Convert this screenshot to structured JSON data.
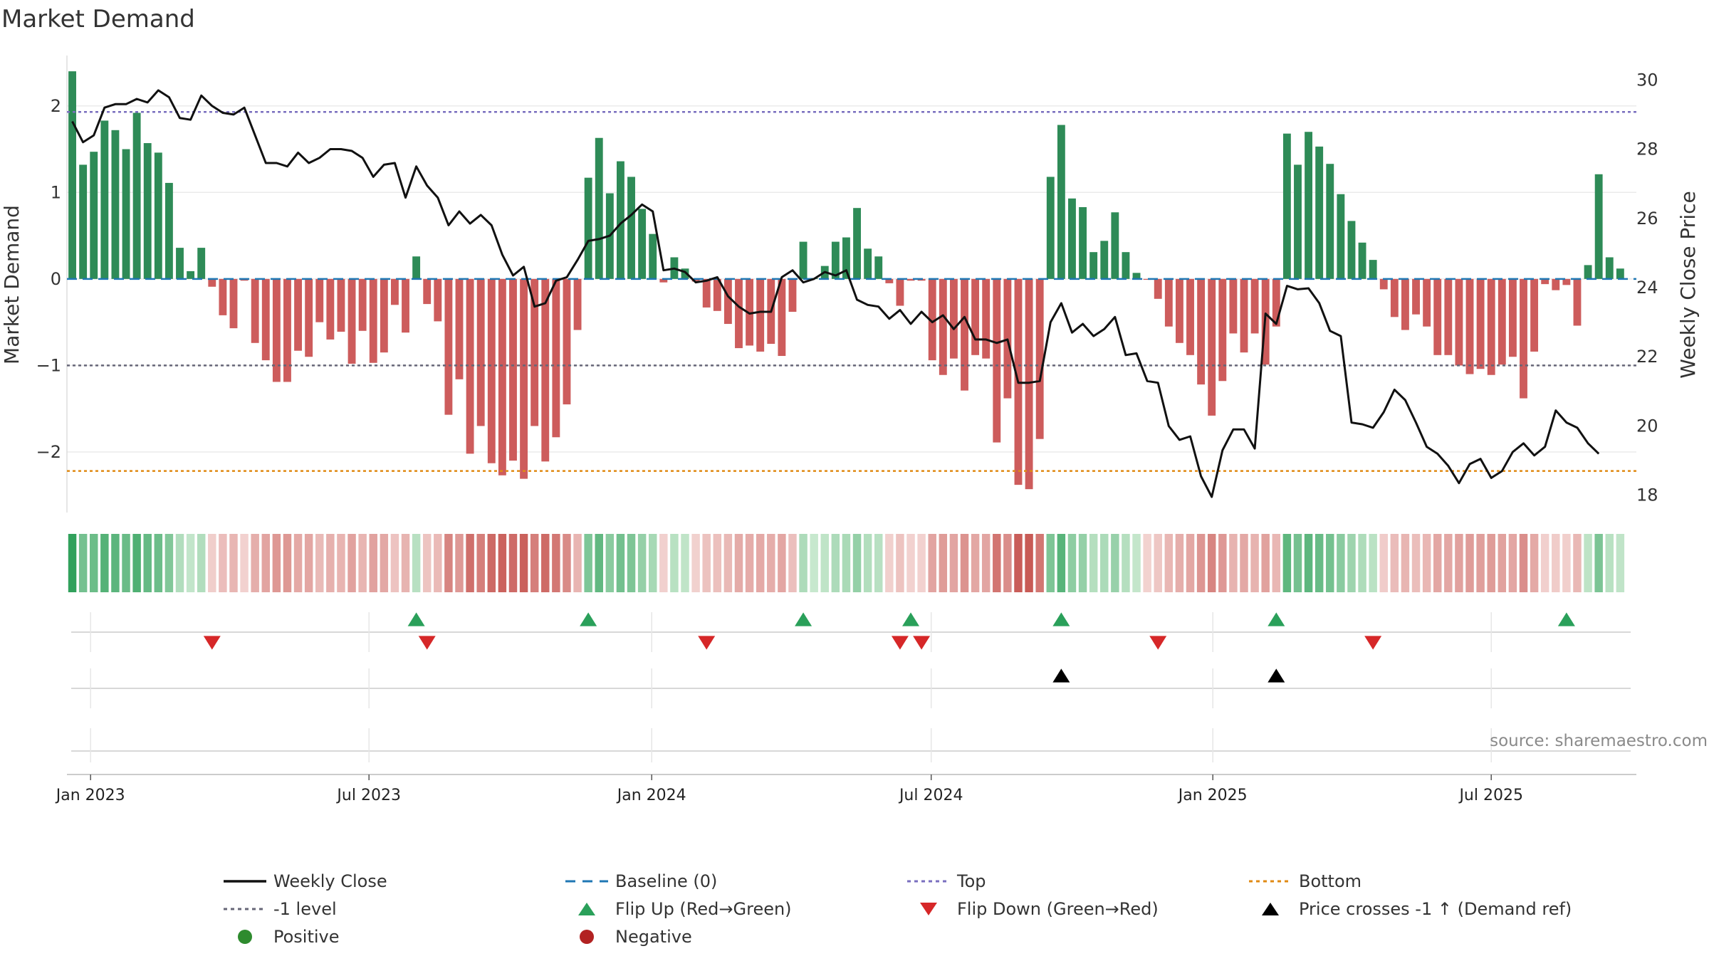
{
  "chart_data": {
    "type": "bar",
    "title": "Market Demand",
    "ylabel_left": "Market Demand",
    "ylabel_right": "Weekly Close Price",
    "source": "source: sharemaestro.com",
    "y_left_range": [
      -2.7,
      2.5
    ],
    "y_left_ticks": [
      2,
      1,
      0,
      -1,
      -2
    ],
    "y_left_tick_labels": [
      "2",
      "1",
      "0",
      "−1",
      "−2"
    ],
    "y_right_range": [
      17.5,
      30.5
    ],
    "y_right_ticks": [
      30,
      28,
      26,
      24,
      22,
      20,
      18
    ],
    "y_right_tick_labels": [
      "30",
      "28",
      "26",
      "24",
      "22",
      "20",
      "18"
    ],
    "x_range_weeks": [
      0,
      146
    ],
    "x_ticks": [
      {
        "label": "Jan 2023",
        "week": 2.2
      },
      {
        "label": "Jul 2023",
        "week": 28.1
      },
      {
        "label": "Jan 2024",
        "week": 54.4
      },
      {
        "label": "Jul 2024",
        "week": 80.4
      },
      {
        "label": "Jan 2025",
        "week": 106.6
      },
      {
        "label": "Jul 2025",
        "week": 132.5
      }
    ],
    "reference_lines": {
      "top": 1.93,
      "minus_one": -1.0,
      "bottom": -2.22,
      "baseline": 0
    },
    "demand": [
      2.4,
      1.32,
      1.47,
      1.83,
      1.72,
      1.5,
      1.92,
      1.57,
      1.46,
      1.11,
      0.36,
      0.09,
      0.36,
      -0.09,
      -0.42,
      -0.57,
      -0.02,
      -0.74,
      -0.94,
      -1.19,
      -1.19,
      -0.83,
      -0.9,
      -0.5,
      -0.7,
      -0.61,
      -0.98,
      -0.6,
      -0.97,
      -0.85,
      -0.3,
      -0.62,
      0.26,
      -0.29,
      -0.49,
      -1.57,
      -1.16,
      -2.02,
      -1.7,
      -2.13,
      -2.27,
      -2.1,
      -2.31,
      -1.7,
      -2.11,
      -1.83,
      -1.45,
      -0.59,
      1.17,
      1.63,
      0.99,
      1.36,
      1.18,
      0.81,
      0.52,
      -0.04,
      0.25,
      0.12,
      -0.03,
      -0.33,
      -0.37,
      -0.52,
      -0.8,
      -0.77,
      -0.84,
      -0.75,
      -0.89,
      -0.38,
      0.43,
      0.01,
      0.15,
      0.43,
      0.48,
      0.82,
      0.35,
      0.26,
      -0.05,
      -0.31,
      -0.02,
      -0.02,
      -0.94,
      -1.11,
      -0.92,
      -1.29,
      -0.88,
      -0.92,
      -1.89,
      -1.38,
      -2.38,
      -2.43,
      -1.85,
      1.18,
      1.78,
      0.93,
      0.83,
      0.31,
      0.44,
      0.77,
      0.31,
      0.07,
      -0.01,
      -0.23,
      -0.55,
      -0.74,
      -0.88,
      -1.22,
      -1.58,
      -1.18,
      -0.63,
      -0.85,
      -0.63,
      -0.99,
      -0.55,
      1.68,
      1.32,
      1.7,
      1.53,
      1.33,
      0.98,
      0.67,
      0.42,
      0.22,
      -0.12,
      -0.44,
      -0.59,
      -0.41,
      -0.55,
      -0.88,
      -0.88,
      -1.0,
      -1.1,
      -1.04,
      -1.11,
      -0.99,
      -0.9,
      -1.38,
      -0.84,
      -0.06,
      -0.13,
      -0.07,
      -0.54,
      0.16,
      1.21,
      0.25,
      0.12
    ],
    "price_weekly_close": [
      28.8,
      28.2,
      28.4,
      29.2,
      29.3,
      29.3,
      29.45,
      29.35,
      29.7,
      29.5,
      28.9,
      28.85,
      29.55,
      29.25,
      29.05,
      29.0,
      29.2,
      28.4,
      27.6,
      27.6,
      27.5,
      27.9,
      27.6,
      27.75,
      28.0,
      28.0,
      27.95,
      27.75,
      27.2,
      27.55,
      27.6,
      26.6,
      27.5,
      26.95,
      26.6,
      25.8,
      26.2,
      25.85,
      26.1,
      25.8,
      24.95,
      24.35,
      24.6,
      23.45,
      23.55,
      24.2,
      24.3,
      24.8,
      25.35,
      25.4,
      25.5,
      25.85,
      26.1,
      26.4,
      26.2,
      24.5,
      24.55,
      24.45,
      24.15,
      24.2,
      24.3,
      23.75,
      23.45,
      23.25,
      23.3,
      23.3,
      24.3,
      24.5,
      24.15,
      24.25,
      24.45,
      24.35,
      24.5,
      23.65,
      23.5,
      23.45,
      23.1,
      23.35,
      22.95,
      23.3,
      23.0,
      23.2,
      22.8,
      23.15,
      22.5,
      22.5,
      22.4,
      22.5,
      21.25,
      21.25,
      21.3,
      23.0,
      23.55,
      22.7,
      22.95,
      22.6,
      22.8,
      23.15,
      22.05,
      22.1,
      21.3,
      21.25,
      20.0,
      19.6,
      19.7,
      18.55,
      17.95,
      19.3,
      19.9,
      19.9,
      19.35,
      23.25,
      22.95,
      24.05,
      23.95,
      23.98,
      23.55,
      22.75,
      22.6,
      20.1,
      20.05,
      19.95,
      20.4,
      21.05,
      20.75,
      20.1,
      19.4,
      19.2,
      18.85,
      18.35,
      18.9,
      19.05,
      18.5,
      18.7,
      19.25,
      19.5,
      19.15,
      19.4,
      20.45,
      20.1,
      19.95,
      19.5,
      19.2
    ],
    "flip_up_weeks": [
      32,
      48,
      68,
      78,
      92,
      112,
      139
    ],
    "flip_down_weeks": [
      13,
      33,
      59,
      77,
      79,
      101,
      121
    ],
    "price_cross_weeks": [
      92,
      112
    ],
    "legend": [
      {
        "label": "Weekly Close",
        "marker": "solid-line",
        "color": "#111111"
      },
      {
        "label": "Baseline (0)",
        "marker": "dashed-line",
        "color": "#1f77b4"
      },
      {
        "label": "Top",
        "marker": "dotted-line",
        "color": "#7a6fbf"
      },
      {
        "label": "Bottom",
        "marker": "dotted-line",
        "color": "#e08a14"
      },
      {
        "label": "-1 level",
        "marker": "dotted-line",
        "color": "#666677"
      },
      {
        "label": "Flip Up (Red→Green)",
        "marker": "triangle-up",
        "color": "#2aa05a"
      },
      {
        "label": "Flip Down (Green→Red)",
        "marker": "triangle-down",
        "color": "#d62728"
      },
      {
        "label": "Price crosses -1 ↑ (Demand ref)",
        "marker": "triangle-up",
        "color": "#000000"
      },
      {
        "label": "Positive",
        "marker": "circle",
        "color": "#2e8b2e"
      },
      {
        "label": "Negative",
        "marker": "circle",
        "color": "#b22222"
      }
    ],
    "colors": {
      "positive_bar": "#2e8b57",
      "negative_bar": "#cd5c5c",
      "price_line": "#111111",
      "baseline": "#1f77b4",
      "top_line": "#7a6fbf",
      "minus_one_line": "#666677",
      "bottom_line": "#e08a14",
      "flip_up": "#2aa05a",
      "flip_down": "#d62728",
      "price_cross": "#000000"
    }
  }
}
